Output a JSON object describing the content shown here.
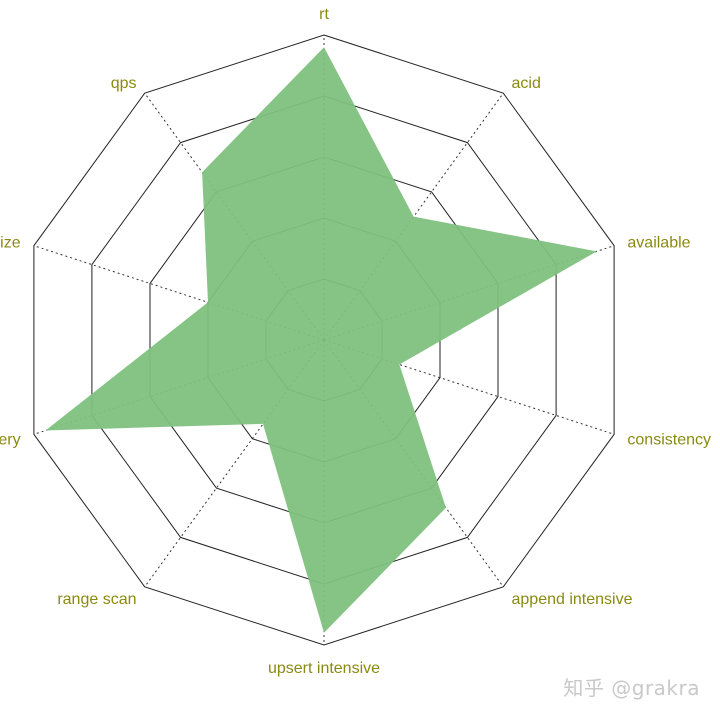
{
  "chart_data": {
    "type": "radar",
    "axes": [
      "rt",
      "acid",
      "available",
      "consistency",
      "append intensive",
      "upsert intensive",
      "range scan",
      "point query",
      "data size",
      "qps"
    ],
    "levels": [
      1,
      2,
      3,
      4,
      5
    ],
    "range": [
      0,
      5
    ],
    "grid": true,
    "series": [
      {
        "values": [
          4.8,
          2.5,
          4.7,
          1.3,
          3.4,
          4.8,
          1.7,
          4.8,
          2.0,
          3.4
        ]
      }
    ],
    "colors": {
      "fill": "#7ec17e",
      "grid": "#222222",
      "spoke": "#333333",
      "label": "#8a8a12"
    }
  },
  "watermark": "知乎 @grakra"
}
